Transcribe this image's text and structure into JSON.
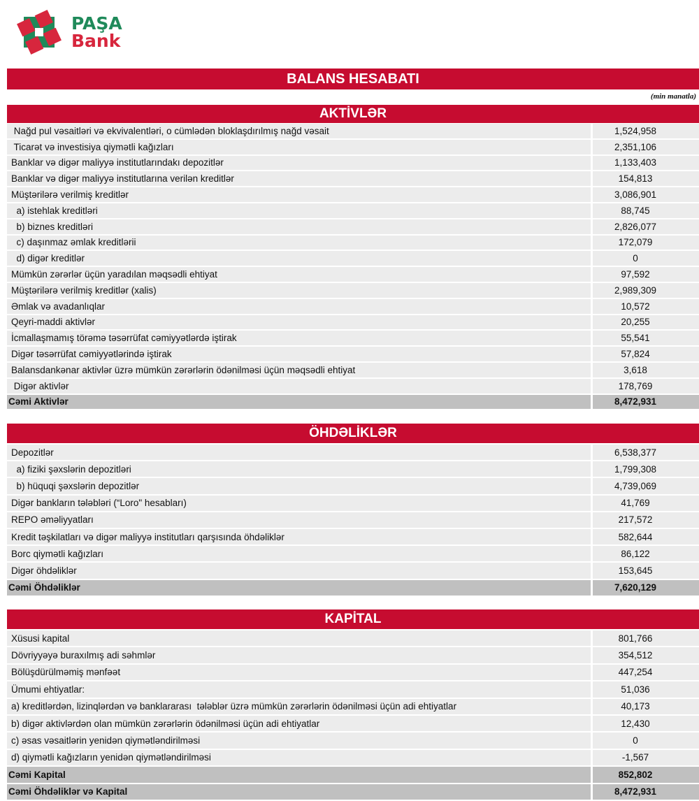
{
  "logo": {
    "line1": "PAŞA",
    "line2": "Bank",
    "colors": {
      "green": "#1f8a5a",
      "red": "#d7263d"
    }
  },
  "title": "BALANS HESABATI",
  "unit": "(min manatla)",
  "accent": "#c60c30",
  "sections": [
    {
      "header": "AKTİVLƏR",
      "rows": [
        {
          "label": " Nağd pul vəsaitləri və ekvivalentləri, o cümlədən bloklaşdırılmış nağd vəsait",
          "value": "1,524,958"
        },
        {
          "label": " Ticarət və investisiya qiymətli kağızları",
          "value": "2,351,106"
        },
        {
          "label": "Banklar və digər maliyyə institutlarındakı depozitlər",
          "value": "1,133,403"
        },
        {
          "label": "Banklar və digər maliyyə institutlarına verilən kreditlər",
          "value": "154,813"
        },
        {
          "label": "Müştərilərə verilmiş kreditlər",
          "value": "3,086,901"
        },
        {
          "label": "  a) istehlak kreditləri",
          "value": "88,745"
        },
        {
          "label": "  b) biznes kreditləri",
          "value": "2,826,077"
        },
        {
          "label": "  c) daşınmaz əmlak kreditlərii",
          "value": "172,079"
        },
        {
          "label": "  d) digər kreditlər",
          "value": "0"
        },
        {
          "label": "Mümkün zərərlər üçün yaradılan məqsədli ehtiyat",
          "value": "97,592"
        },
        {
          "label": "Müştərilərə verilmiş kreditlər (xalis)",
          "value": "2,989,309"
        },
        {
          "label": "Əmlak və avadanlıqlar",
          "value": "10,572"
        },
        {
          "label": "Qeyri-maddi aktivlər",
          "value": "20,255"
        },
        {
          "label": "İcmallaşmamış törəmə təsərrüfat cəmiyyətlərdə iştirak",
          "value": "55,541"
        },
        {
          "label": "Digər təsərrüfat cəmiyyətlərində iştirak",
          "value": "57,824"
        },
        {
          "label": "Balansdankənar aktivlər üzrə mümkün zərərlərin ödənilməsi üçün məqsədli ehtiyat",
          "value": "3,618"
        },
        {
          "label": " Digər aktivlər",
          "value": "178,769"
        }
      ],
      "total": {
        "label": "Cəmi Aktivlər",
        "value": "8,472,931"
      }
    },
    {
      "header": "ÖHDƏLİKLƏR",
      "rows": [
        {
          "label": "Depozitlər",
          "value": "6,538,377"
        },
        {
          "label": "  a) fiziki şəxslərin depozitləri",
          "value": "1,799,308"
        },
        {
          "label": "  b) hüquqi şəxslərin depozitlər",
          "value": "4,739,069"
        },
        {
          "label": "Digər bankların tələbləri (“Loro\" hesabları)",
          "value": "41,769"
        },
        {
          "label": "REPO əməliyyatları",
          "value": "217,572"
        },
        {
          "label": "Kredit təşkilatları və digər maliyyə institutları qarşısında öhdəliklər",
          "value": "582,644"
        },
        {
          "label": "Borc qiymətli kağızları",
          "value": "86,122"
        },
        {
          "label": "Digər öhdəliklər",
          "value": "153,645"
        }
      ],
      "total": {
        "label": "Cəmi Öhdəliklər",
        "value": "7,620,129"
      }
    },
    {
      "header": "KAPİTAL",
      "rows": [
        {
          "label": "Xüsusi kapital",
          "value": "801,766"
        },
        {
          "label": "Dövriyyəyə buraxılmış adi səhmlər",
          "value": "354,512"
        },
        {
          "label": "Bölüşdürülməmiş mənfəət",
          "value": "447,254"
        },
        {
          "label": "Ümumi ehtiyatlar:",
          "value": "51,036"
        },
        {
          "label": "a) kreditlərdən, lizinqlərdən və banklararası  tələblər üzrə mümkün zərərlərin ödənilməsi üçün adi ehtiyatlar",
          "value": "40,173"
        },
        {
          "label": "b) digər aktivlərdən olan mümkün zərərlərin ödənilməsi üçün adi ehtiyatlar",
          "value": "12,430"
        },
        {
          "label": "c) əsas vəsaitlərin yenidən qiymətləndirilməsi",
          "value": "0"
        },
        {
          "label": "d) qiymətli kağızların yenidən qiymətləndirilməsi",
          "value": "-1,567"
        }
      ],
      "total": {
        "label": "Cəmi Kapital",
        "value": "852,802"
      },
      "grand_total": {
        "label": "Cəmi Öhdəliklər və Kapital",
        "value": "8,472,931"
      }
    }
  ]
}
